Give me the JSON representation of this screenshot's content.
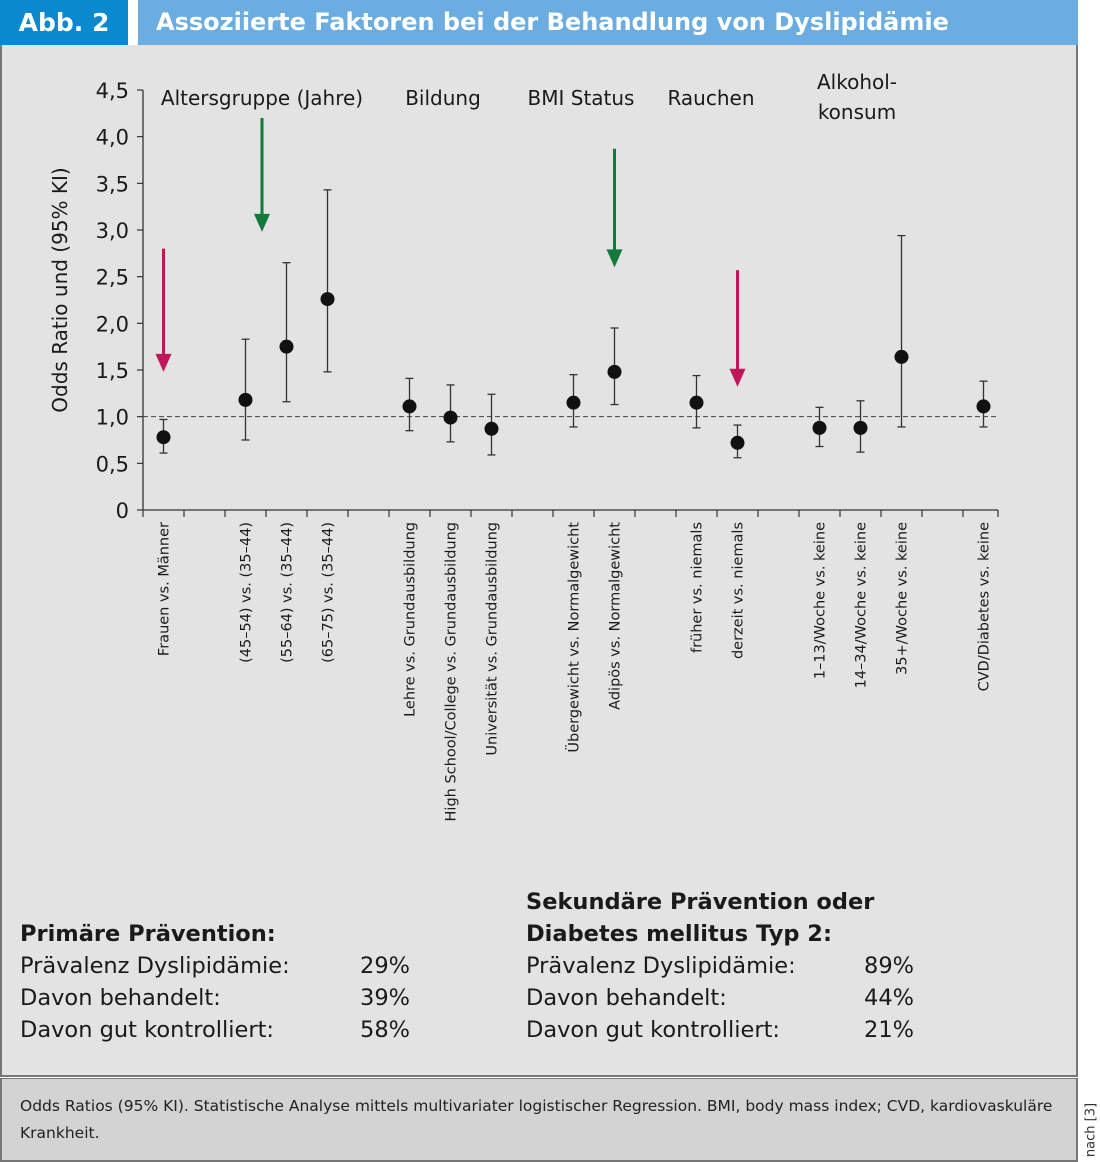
{
  "header": {
    "figure_label": "Abb. 2",
    "title": "Assoziierte Faktoren bei der Behandlung von Dyslipidämie"
  },
  "colors": {
    "label_box": "#0a89cf",
    "title_box": "#6bade0",
    "panel_bg": "#e3e3e3",
    "caption_bg": "#d3d3d3",
    "arrow_green": "#127a3a",
    "arrow_red": "#c0175a",
    "point": "#111111"
  },
  "chart_data": {
    "type": "scatter",
    "title": "",
    "xlabel": "",
    "ylabel": "Odds Ratio und (95% KI)",
    "ylim": [
      0,
      4.5
    ],
    "yticks": [
      0,
      0.5,
      1.0,
      1.5,
      2.0,
      2.5,
      3.0,
      3.5,
      4.0,
      4.5
    ],
    "ytick_labels": [
      "0",
      "0,5",
      "1,0",
      "1,5",
      "2,0",
      "2,5",
      "3,0",
      "3,5",
      "4,0",
      "4,5"
    ],
    "reference_line": 1.0,
    "grid": false,
    "groups": [
      {
        "label": "Altersgruppe (Jahre)",
        "label_lines": [
          "Altersgruppe (Jahre)"
        ]
      },
      {
        "label": "Bildung",
        "label_lines": [
          "Bildung"
        ]
      },
      {
        "label": "BMI Status",
        "label_lines": [
          "BMI Status"
        ]
      },
      {
        "label": "Rauchen",
        "label_lines": [
          "Rauchen"
        ]
      },
      {
        "label": "Alkoholkonsum",
        "label_lines": [
          "Alkohol-",
          "konsum"
        ]
      }
    ],
    "points": [
      {
        "slot": 0,
        "category": "Frauen vs. Männer",
        "or": 0.78,
        "ci_low": 0.61,
        "ci_high": 0.97,
        "arrow": "red"
      },
      {
        "slot": 2,
        "category": "(45–54) vs. (35–44)",
        "or": 1.18,
        "ci_low": 0.75,
        "ci_high": 1.83
      },
      {
        "slot": 3,
        "category": "(55–64) vs. (35–44)",
        "or": 1.75,
        "ci_low": 1.16,
        "ci_high": 2.65
      },
      {
        "slot": 4,
        "category": "(65–75) vs. (35–44)",
        "or": 2.26,
        "ci_low": 1.48,
        "ci_high": 3.43
      },
      {
        "slot": 6,
        "category": "Lehre vs. Grundausbildung",
        "or": 1.11,
        "ci_low": 0.85,
        "ci_high": 1.41
      },
      {
        "slot": 7,
        "category": "High School/College vs. Grundausbildung",
        "or": 0.99,
        "ci_low": 0.73,
        "ci_high": 1.34
      },
      {
        "slot": 8,
        "category": "Universität vs. Grundausbildung",
        "or": 0.87,
        "ci_low": 0.59,
        "ci_high": 1.24
      },
      {
        "slot": 10,
        "category": "Übergewicht vs. Normalgewicht",
        "or": 1.15,
        "ci_low": 0.89,
        "ci_high": 1.45
      },
      {
        "slot": 11,
        "category": "Adipös vs. Normalgewicht",
        "or": 1.48,
        "ci_low": 1.13,
        "ci_high": 1.95,
        "arrow": "green"
      },
      {
        "slot": 13,
        "category": "früher vs. niemals",
        "or": 1.15,
        "ci_low": 0.88,
        "ci_high": 1.44
      },
      {
        "slot": 14,
        "category": "derzeit vs. niemals",
        "or": 0.72,
        "ci_low": 0.56,
        "ci_high": 0.91,
        "arrow": "red"
      },
      {
        "slot": 16,
        "category": "1–13/Woche vs. keine",
        "or": 0.88,
        "ci_low": 0.68,
        "ci_high": 1.1
      },
      {
        "slot": 17,
        "category": "14–34/Woche vs. keine",
        "or": 0.88,
        "ci_low": 0.62,
        "ci_high": 1.17
      },
      {
        "slot": 18,
        "category": "35+/Woche vs. keine",
        "or": 1.64,
        "ci_low": 0.89,
        "ci_high": 2.94
      },
      {
        "slot": 20,
        "category": "CVD/Diabetes vs. keine",
        "or": 1.11,
        "ci_low": 0.89,
        "ci_high": 1.38
      }
    ],
    "annotations": [
      {
        "type": "arrow",
        "color": "red",
        "target": "Frauen vs. Männer",
        "from": 2.8,
        "to": 1.48
      },
      {
        "type": "arrow",
        "color": "green",
        "target": "Altersgruppe (Jahre)",
        "from": 4.2,
        "to": 2.98
      },
      {
        "type": "arrow",
        "color": "green",
        "target": "Adipös vs. Normalgewicht",
        "from": 3.87,
        "to": 2.6
      },
      {
        "type": "arrow",
        "color": "red",
        "target": "derzeit vs. niemals",
        "from": 2.57,
        "to": 1.32
      }
    ]
  },
  "stats": {
    "primary": {
      "title": "Primäre Prävention:",
      "rows": [
        {
          "label": "Prävalenz Dyslipidämie:",
          "value": "29%"
        },
        {
          "label": "Davon behandelt:",
          "value": "39%"
        },
        {
          "label": "Davon gut kontrolliert:",
          "value": "58%"
        }
      ]
    },
    "secondary": {
      "title_line1": "Sekundäre Prävention oder",
      "title_line2": "Diabetes mellitus Typ 2:",
      "rows": [
        {
          "label": "Prävalenz Dyslipidämie:",
          "value": "89%"
        },
        {
          "label": "Davon behandelt:",
          "value": "44%"
        },
        {
          "label": "Davon gut kontrolliert:",
          "value": "21%"
        }
      ]
    }
  },
  "caption": "Odds Ratios (95% KI). Statistische Analyse mittels multivariater logistischer Regression. BMI, body mass index; CVD, kardiovaskuläre Krankheit.",
  "source": "nach [3]"
}
